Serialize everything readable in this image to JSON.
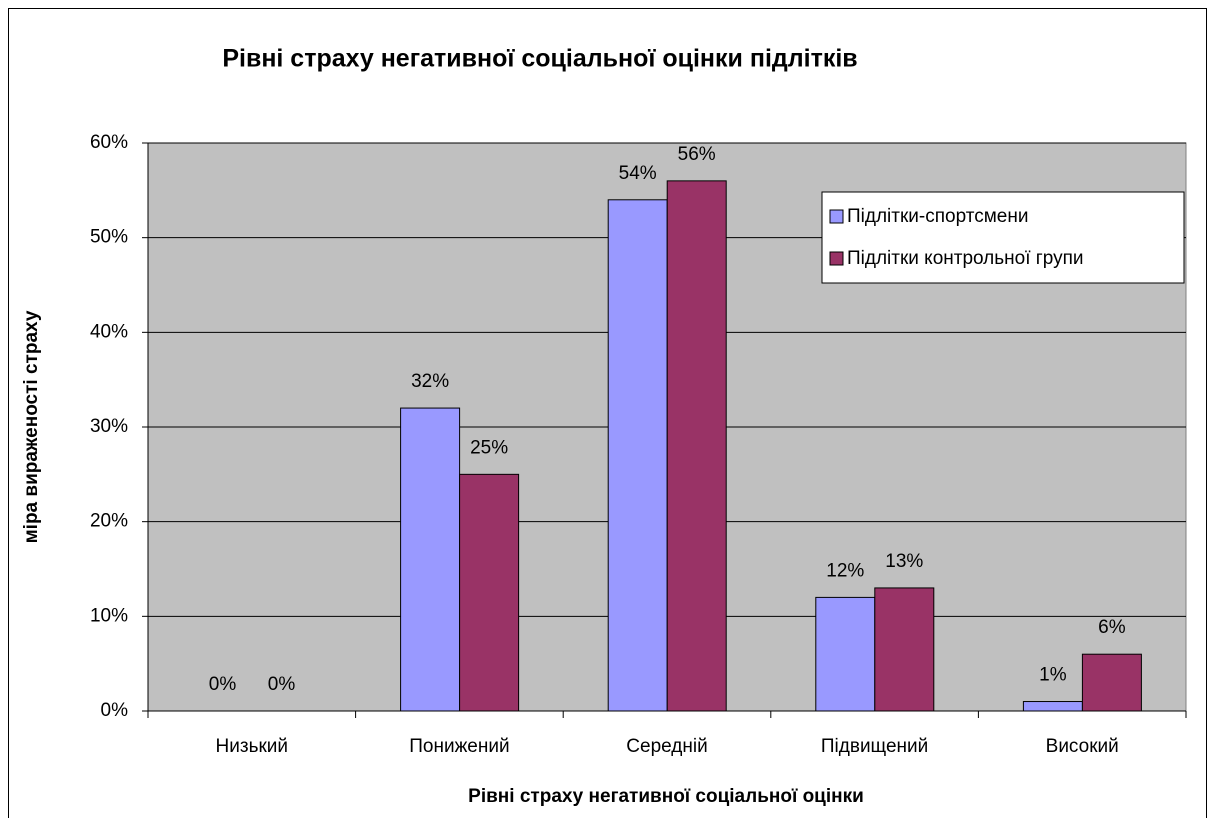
{
  "chart_data": {
    "type": "bar",
    "title": "Рівні страху негативної соціальної оцінки підлітків",
    "x_label": "Рівні страху негативної соціальної оцінки",
    "y_label": "міра вираженості страху",
    "categories": [
      "Низький",
      "Понижений",
      "Середній",
      "Підвищений",
      "Високий"
    ],
    "series": [
      {
        "name": "Підлітки-спортсмени",
        "color": "#9999ff",
        "values": [
          0,
          32,
          54,
          12,
          1
        ],
        "value_labels": [
          "0%",
          "32%",
          "54%",
          "12%",
          "1%"
        ]
      },
      {
        "name": "Підлітки контрольної групи",
        "color": "#993366",
        "values": [
          0,
          25,
          56,
          13,
          6
        ],
        "value_labels": [
          "0%",
          "25%",
          "56%",
          "13%",
          "6%"
        ]
      }
    ],
    "ylim": [
      0,
      60
    ],
    "yticks": [
      {
        "value": 0,
        "label": "0%"
      },
      {
        "value": 10,
        "label": "10%"
      },
      {
        "value": 20,
        "label": "20%"
      },
      {
        "value": 30,
        "label": "30%"
      },
      {
        "value": 40,
        "label": "40%"
      },
      {
        "value": 50,
        "label": "50%"
      },
      {
        "value": 60,
        "label": "60%"
      }
    ],
    "grid": true,
    "legend": "upper right"
  }
}
